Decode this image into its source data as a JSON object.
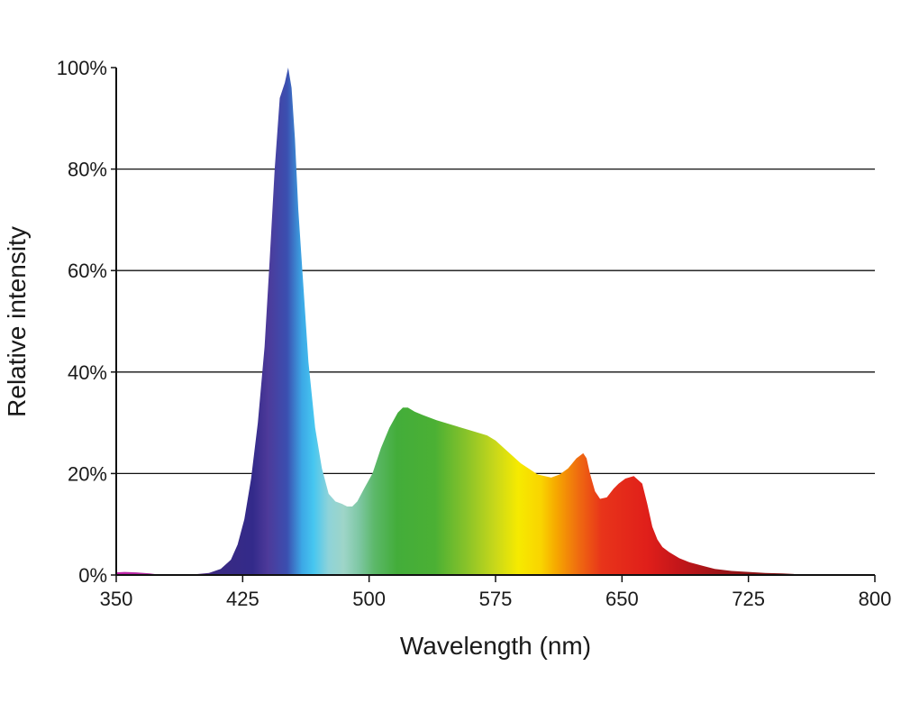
{
  "chart_data": {
    "type": "area",
    "title": "",
    "xlabel": "Wavelength (nm)",
    "ylabel": "Relative intensity",
    "xlim": [
      350,
      800
    ],
    "ylim": [
      0,
      100
    ],
    "xticks": [
      350,
      425,
      500,
      575,
      650,
      725,
      800
    ],
    "yticks": [
      0,
      20,
      40,
      60,
      80,
      100
    ],
    "ytick_labels": [
      "0%",
      "20%",
      "40%",
      "60%",
      "80%",
      "100%"
    ],
    "grid": "horizontal",
    "legend": "none",
    "fill": "visible-spectrum gradient",
    "series": [
      {
        "x": [
          350,
          355,
          362,
          370,
          375,
          380,
          395,
          405,
          412,
          418,
          422,
          426,
          430,
          434,
          438,
          441,
          444,
          447,
          450,
          452,
          454,
          456,
          458,
          461,
          464,
          468,
          472,
          476,
          480,
          484,
          487,
          490,
          493,
          497,
          502,
          507,
          512,
          517,
          520,
          523,
          527,
          532,
          540,
          550,
          560,
          570,
          575,
          580,
          590,
          600,
          608,
          613,
          618,
          623,
          627,
          629,
          631,
          634,
          637,
          641,
          645,
          648,
          652,
          657,
          662,
          665,
          668,
          671,
          674,
          678,
          684,
          690,
          698,
          705,
          715,
          725,
          735,
          745,
          752
        ],
        "y": [
          0.5,
          0.6,
          0.5,
          0.3,
          0.1,
          0,
          0.1,
          0.4,
          1.2,
          3,
          6,
          11,
          19,
          30,
          45,
          62,
          80,
          94,
          97,
          100,
          96,
          86,
          72,
          57,
          42,
          29,
          21,
          16,
          14.5,
          14,
          13.5,
          13.5,
          14.5,
          17,
          20,
          25,
          29,
          32,
          33,
          33,
          32.2,
          31.5,
          30.5,
          29.5,
          28.5,
          27.5,
          26.5,
          25,
          22,
          19.8,
          19.2,
          19.8,
          21,
          23,
          24,
          23,
          20,
          16.5,
          15,
          15.3,
          17,
          18,
          19,
          19.5,
          18,
          14,
          9.5,
          7,
          5.5,
          4.5,
          3.3,
          2.5,
          1.8,
          1.2,
          0.8,
          0.6,
          0.4,
          0.3,
          0.2
        ]
      }
    ]
  }
}
